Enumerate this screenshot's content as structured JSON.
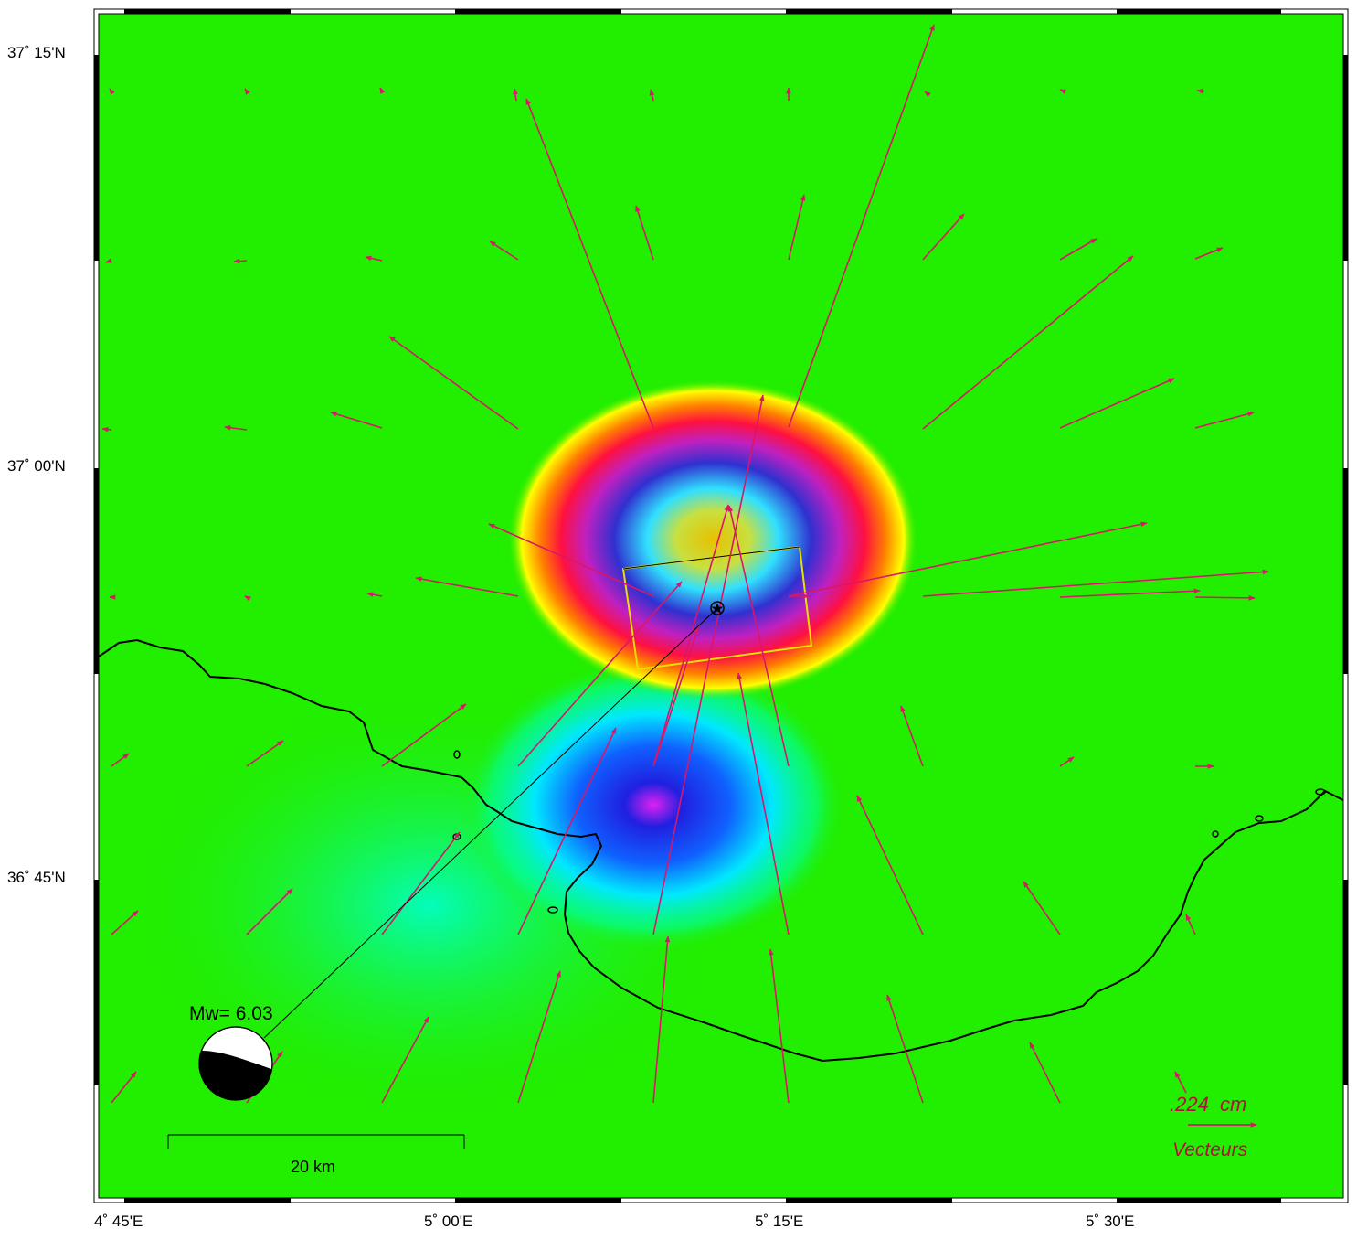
{
  "map": {
    "lat_labels": [
      "37˚ 15'N",
      "37˚ 00'N",
      "36˚ 45'N"
    ],
    "lon_labels": [
      "4˚ 45'E",
      "5˚ 00'E",
      "5˚ 15'E",
      "5˚ 30'E"
    ],
    "magnitude_label": "Mw= 6.03",
    "scale_bar_label": "20 km",
    "vector_scale_value": ".224  cm",
    "vector_legend_label": "Vecteurs",
    "colors": {
      "background": "#22ee00",
      "vectors": "#d8176a",
      "vector_legend_text": "#b0103a",
      "fault_outline": "#e8e000",
      "coastline": "#000000"
    },
    "icons": [
      "epicenter-star-icon",
      "focal-mechanism-beachball-icon"
    ]
  }
}
